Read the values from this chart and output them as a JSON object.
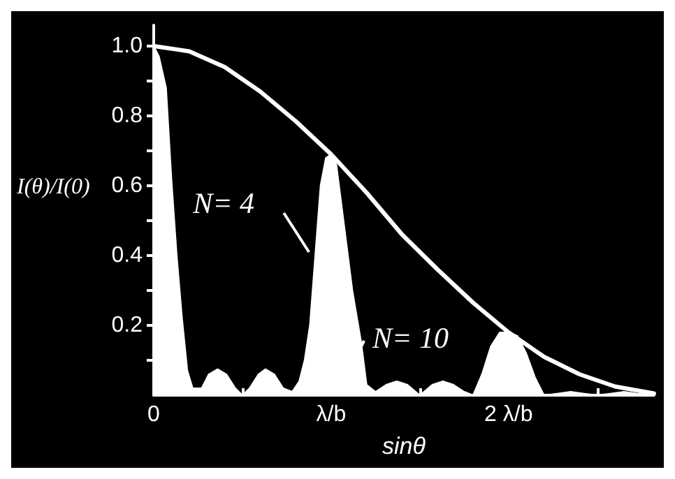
{
  "chart_data": {
    "type": "line",
    "xlabel": "sinθ",
    "ylabel": "I(θ)/I(0)",
    "xlim": [
      0,
      2.82
    ],
    "ylim": [
      0,
      1.06
    ],
    "xticks": [
      {
        "value": 0,
        "label": "0"
      },
      {
        "value": 0.5,
        "label": null
      },
      {
        "value": 1,
        "label": "λ/b"
      },
      {
        "value": 1.5,
        "label": null
      },
      {
        "value": 2,
        "label": "2 λ/b"
      },
      {
        "value": 2.5,
        "label": null
      }
    ],
    "yticks": [
      {
        "value": 0.1,
        "label": null
      },
      0.2,
      {
        "value": 0.3,
        "label": null
      },
      0.4,
      {
        "value": 0.5,
        "label": null
      },
      0.6,
      {
        "value": 0.7,
        "label": null
      },
      0.8,
      {
        "value": 0.9,
        "label": null
      },
      {
        "value": 1,
        "label": "1.0"
      }
    ],
    "marker": "none",
    "grid": false,
    "series": [
      {
        "type": "area",
        "color": "#ffffff",
        "x": [
          0,
          0.03,
          0.07,
          0.1,
          0.13,
          0.16,
          0.19,
          0.22,
          0.27,
          0.31,
          0.36,
          0.41,
          0.46,
          0.5,
          0.54,
          0.59,
          0.63,
          0.68,
          0.73,
          0.78,
          0.82,
          0.85,
          0.88,
          0.91,
          0.94,
          0.97,
          1.0,
          1.03,
          1.07,
          1.12,
          1.17,
          1.2,
          1.25,
          1.31,
          1.37,
          1.43,
          1.5,
          1.57,
          1.63,
          1.69,
          1.75,
          1.8,
          1.85,
          1.9,
          1.95,
          2.0,
          2.05,
          2.1,
          2.15,
          2.2,
          2.28,
          2.35,
          2.42,
          2.5,
          2.58,
          2.65,
          2.72,
          2.82
        ],
        "values": [
          1.0,
          0.97,
          0.88,
          0.62,
          0.4,
          0.22,
          0.07,
          0.02,
          0.02,
          0.06,
          0.075,
          0.06,
          0.02,
          0.0,
          0.02,
          0.06,
          0.075,
          0.06,
          0.02,
          0.01,
          0.04,
          0.1,
          0.2,
          0.4,
          0.6,
          0.68,
          0.69,
          0.66,
          0.5,
          0.3,
          0.15,
          0.03,
          0.01,
          0.03,
          0.04,
          0.03,
          0.0,
          0.03,
          0.04,
          0.03,
          0.01,
          0.0,
          0.06,
          0.14,
          0.18,
          0.18,
          0.17,
          0.12,
          0.05,
          0.0,
          0.005,
          0.01,
          0.005,
          0.0,
          0.005,
          0.01,
          0.005,
          0.0
        ]
      },
      {
        "type": "line",
        "color": "#ffffff",
        "x": [
          0,
          0.2,
          0.4,
          0.6,
          0.8,
          1.0,
          1.2,
          1.4,
          1.6,
          1.8,
          2.0,
          2.2,
          2.4,
          2.6,
          2.82
        ],
        "values": [
          1.0,
          0.985,
          0.94,
          0.87,
          0.785,
          0.69,
          0.58,
          0.46,
          0.36,
          0.265,
          0.18,
          0.11,
          0.06,
          0.025,
          0.005
        ]
      }
    ],
    "annotations": [
      {
        "text": "N= 4",
        "x": 0.875,
        "y": 0.41
      },
      {
        "text": "N= 10",
        "x": 1.17,
        "y": 0.14
      }
    ]
  }
}
